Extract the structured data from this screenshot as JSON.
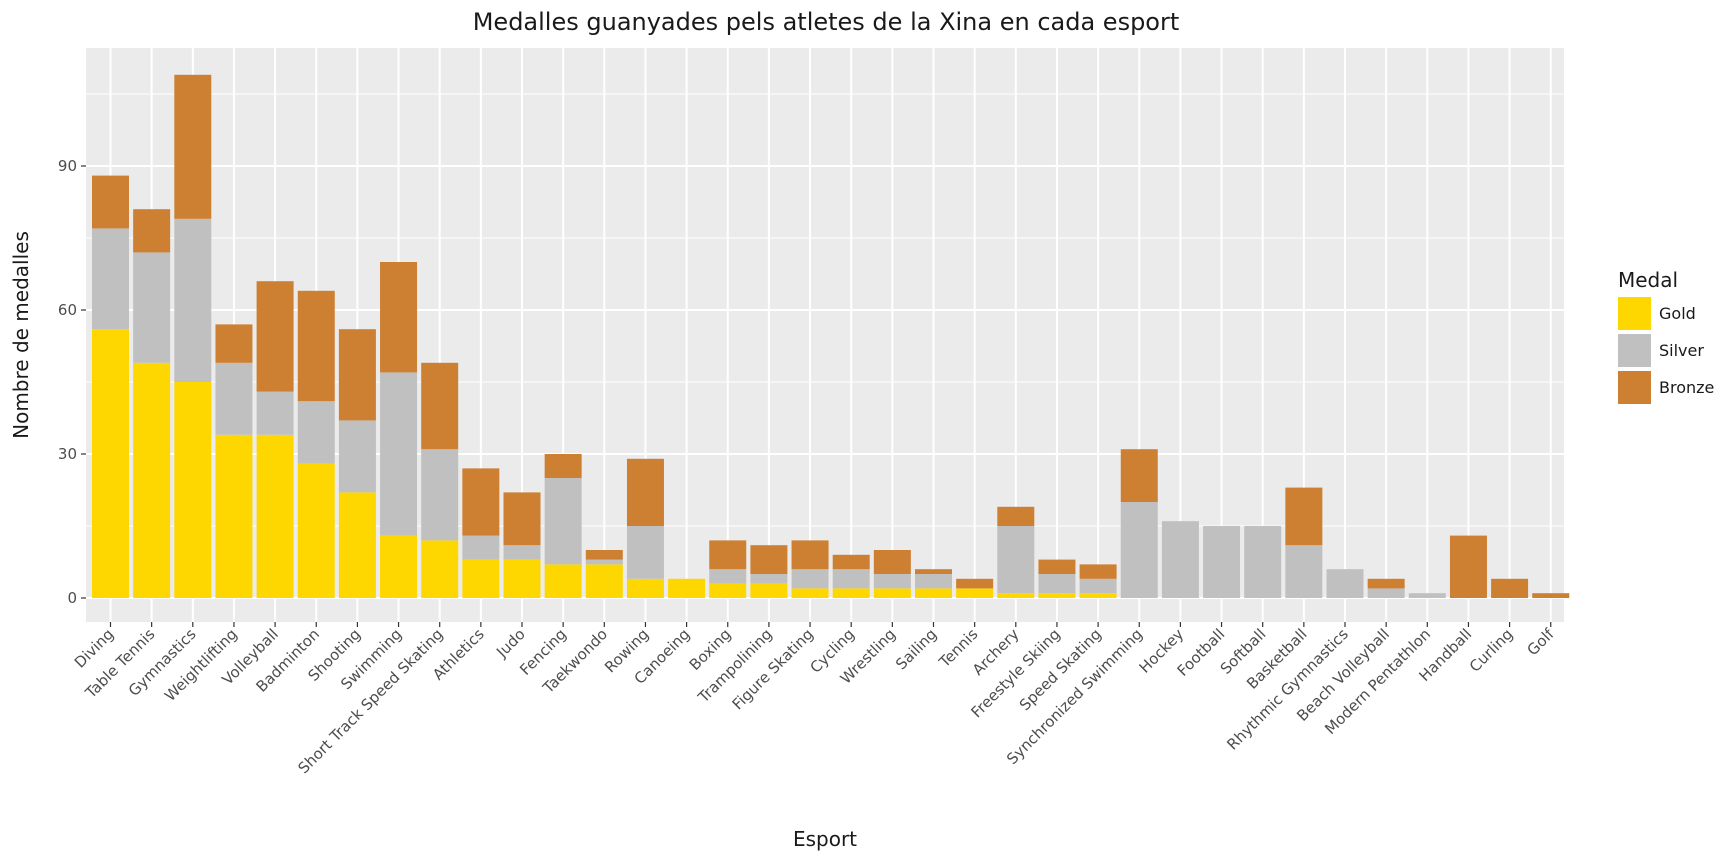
{
  "chart_data": {
    "type": "bar",
    "stacked": true,
    "title": "Medalles guanyades pels atletes de la Xina en cada esport",
    "xlabel": "Esport",
    "ylabel": "Nombre de medalles",
    "ylim": [
      -5,
      115
    ],
    "yticks": [
      0,
      30,
      60,
      90
    ],
    "grid": true,
    "legend": {
      "title": "Medal",
      "position": "right"
    },
    "categories": [
      "Diving",
      "Table Tennis",
      "Gymnastics",
      "Weightlifting",
      "Volleyball",
      "Badminton",
      "Shooting",
      "Swimming",
      "Short Track Speed Skating",
      "Athletics",
      "Judo",
      "Fencing",
      "Taekwondo",
      "Rowing",
      "Canoeing",
      "Boxing",
      "Trampolining",
      "Figure Skating",
      "Cycling",
      "Wrestling",
      "Sailing",
      "Tennis",
      "Archery",
      "Freestyle Skiing",
      "Speed Skating",
      "Synchronized Swimming",
      "Hockey",
      "Football",
      "Softball",
      "Basketball",
      "Rhythmic Gymnastics",
      "Beach Volleyball",
      "Modern Pentathlon",
      "Handball",
      "Curling",
      "Golf"
    ],
    "series": [
      {
        "name": "Gold",
        "color": "#FFD700",
        "values": [
          56,
          49,
          45,
          34,
          34,
          28,
          22,
          13,
          12,
          8,
          8,
          7,
          7,
          4,
          4,
          3,
          3,
          2,
          2,
          2,
          2,
          2,
          1,
          1,
          1,
          0,
          0,
          0,
          0,
          0,
          0,
          0,
          0,
          0,
          0,
          0
        ]
      },
      {
        "name": "Silver",
        "color": "#C0C0C0",
        "values": [
          21,
          23,
          34,
          15,
          9,
          13,
          15,
          34,
          19,
          5,
          3,
          18,
          1,
          11,
          0,
          3,
          2,
          4,
          4,
          3,
          3,
          0,
          14,
          4,
          3,
          20,
          16,
          15,
          15,
          11,
          6,
          2,
          1,
          0,
          0,
          0
        ]
      },
      {
        "name": "Bronze",
        "color": "#CD7F32",
        "values": [
          11,
          9,
          30,
          8,
          23,
          23,
          19,
          23,
          18,
          14,
          11,
          5,
          2,
          14,
          0,
          6,
          6,
          6,
          3,
          5,
          1,
          2,
          4,
          3,
          3,
          11,
          0,
          0,
          0,
          12,
          0,
          2,
          0,
          13,
          4,
          1
        ]
      }
    ]
  }
}
